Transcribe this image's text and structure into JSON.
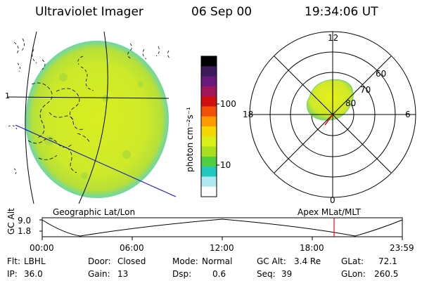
{
  "header": {
    "instrument": "Ultraviolet Imager",
    "date": "06 Sep 00",
    "time": "19:34:06 UT"
  },
  "colorbar": {
    "label": "photon cm⁻²s⁻¹",
    "ticks": [
      "100",
      "10"
    ],
    "colors": [
      "#000000",
      "#3d1a5a",
      "#6a1a7a",
      "#a0165a",
      "#d01010",
      "#f05008",
      "#ff9a00",
      "#f5d800",
      "#d8ef18",
      "#a8e020",
      "#50d040",
      "#22c8c0",
      "#b0e8f0",
      "#ffffff"
    ]
  },
  "left_panel": {
    "lat_label": "1",
    "caption": "Geographic Lat/Lon"
  },
  "right_panel": {
    "labels": [
      "12",
      "18",
      "6",
      "0",
      "60",
      "70",
      "80"
    ],
    "caption": "Apex MLat/MLT"
  },
  "altitude_plot": {
    "ylabel": "GC Alt",
    "yticks": [
      "9.0",
      "1.8"
    ],
    "xticks": [
      "00:00",
      "06:00",
      "12:00",
      "18:00",
      "23:59"
    ]
  },
  "info": {
    "flt_label": "Flt:",
    "flt": "LBHL",
    "ip_label": "IP:",
    "ip": "36.0",
    "door_label": "Door:",
    "door": "Closed",
    "gain_label": "Gain:",
    "gain": "13",
    "mode_label": "Mode:",
    "mode": "Normal",
    "dsp_label": "Dsp:",
    "dsp": "0.6",
    "gcalt_label": "GC Alt:",
    "gcalt": "3.4 Re",
    "seq_label": "Seq:",
    "seq": "39",
    "glat_label": "GLat:",
    "glat": "72.1",
    "glon_label": "GLon:",
    "glon": "260.5"
  }
}
